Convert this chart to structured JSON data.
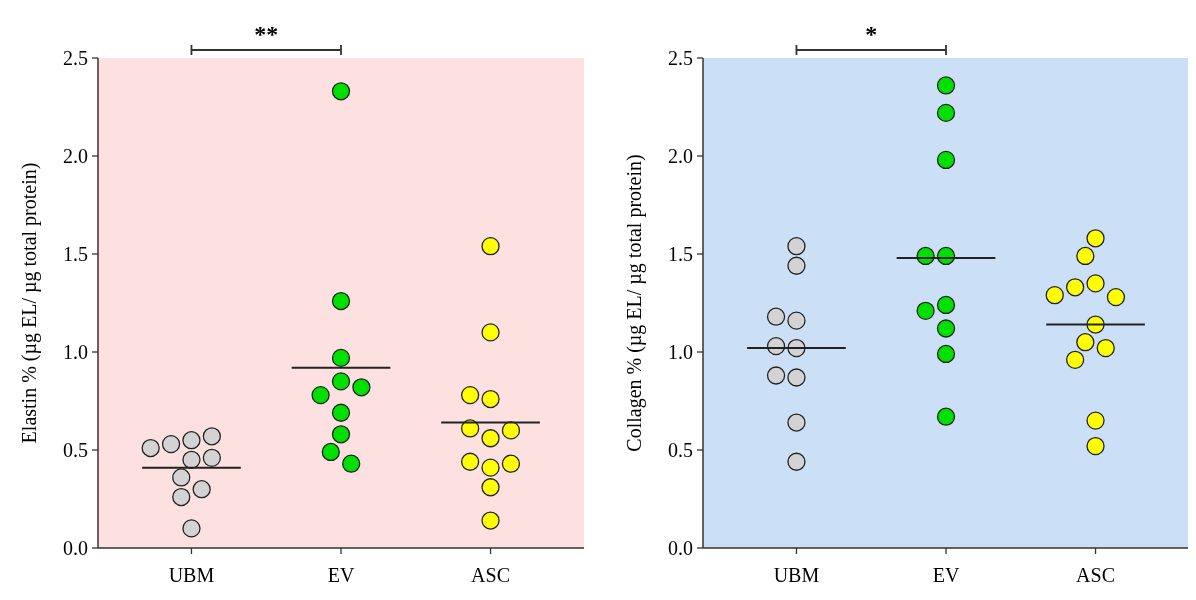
{
  "chart_data": [
    {
      "type": "scatter",
      "ylabel": "Elastin % (µg EL/ µg total protein)",
      "categories": [
        "UBM",
        "EV",
        "ASC"
      ],
      "ylim": [
        0,
        2.5
      ],
      "yticks": [
        {
          "value": 0,
          "label": "0.0"
        },
        0.5,
        {
          "value": 1,
          "label": "1.0"
        },
        1.5,
        {
          "value": 2,
          "label": "2.0"
        },
        2.5
      ],
      "grid": false,
      "marker": "circle",
      "annotations": [
        "**"
      ],
      "series": [
        {
          "type": "scatter",
          "color": "#d3d3d3",
          "x": [
            "UBM",
            "UBM",
            "UBM",
            "UBM",
            "UBM",
            "UBM",
            "UBM",
            "UBM",
            "UBM",
            "UBM"
          ],
          "values": [
            0.55,
            0.53,
            0.57,
            0.51,
            0.45,
            0.46,
            0.36,
            0.3,
            0.26,
            0.1
          ]
        },
        {
          "type": "scatter",
          "color": "#00e000",
          "x": [
            "EV",
            "EV",
            "EV",
            "EV",
            "EV",
            "EV",
            "EV",
            "EV",
            "EV",
            "EV"
          ],
          "values": [
            2.33,
            1.26,
            0.97,
            0.85,
            0.78,
            0.82,
            0.69,
            0.58,
            0.49,
            0.43
          ]
        },
        {
          "type": "scatter",
          "color": "#ffff00",
          "x": [
            "ASC",
            "ASC",
            "ASC",
            "ASC",
            "ASC",
            "ASC",
            "ASC",
            "ASC",
            "ASC",
            "ASC",
            "ASC",
            "ASC"
          ],
          "values": [
            1.54,
            1.1,
            0.76,
            0.78,
            0.56,
            0.61,
            0.6,
            0.41,
            0.44,
            0.43,
            0.31,
            0.14
          ]
        },
        {
          "type": "box",
          "color": "#222222",
          "boxes": [
            {
              "low": 0.41,
              "q1": 0.41,
              "median": 0.41,
              "q3": 0.41,
              "high": 0.41
            },
            {
              "low": 0.92,
              "q1": 0.92,
              "median": 0.92,
              "q3": 0.92,
              "high": 0.92
            },
            {
              "low": 0.64,
              "q1": 0.64,
              "median": 0.64,
              "q3": 0.64,
              "high": 0.64
            }
          ]
        }
      ]
    },
    {
      "type": "scatter",
      "ylabel": "Collagen % (µg EL/ µg total protein)",
      "categories": [
        "UBM",
        "EV",
        "ASC"
      ],
      "ylim": [
        0,
        2.5
      ],
      "yticks": [
        {
          "value": 0,
          "label": "0.0"
        },
        0.5,
        {
          "value": 1,
          "label": "1.0"
        },
        1.5,
        {
          "value": 2,
          "label": "2.0"
        },
        2.5
      ],
      "grid": false,
      "marker": "circle",
      "annotations": [
        "*"
      ],
      "series": [
        {
          "type": "scatter",
          "color": "#d3d3d3",
          "x": [
            "UBM",
            "UBM",
            "UBM",
            "UBM",
            "UBM",
            "UBM",
            "UBM",
            "UBM",
            "UBM",
            "UBM"
          ],
          "values": [
            1.54,
            1.44,
            1.16,
            1.18,
            1.02,
            1.03,
            0.87,
            0.88,
            0.64,
            0.44
          ]
        },
        {
          "type": "scatter",
          "color": "#00e000",
          "x": [
            "EV",
            "EV",
            "EV",
            "EV",
            "EV",
            "EV",
            "EV",
            "EV",
            "EV",
            "EV"
          ],
          "values": [
            2.36,
            2.22,
            1.98,
            1.49,
            1.49,
            1.24,
            1.21,
            1.12,
            0.99,
            0.67
          ]
        },
        {
          "type": "scatter",
          "color": "#ffff00",
          "x": [
            "ASC",
            "ASC",
            "ASC",
            "ASC",
            "ASC",
            "ASC",
            "ASC",
            "ASC",
            "ASC",
            "ASC",
            "ASC",
            "ASC"
          ],
          "values": [
            1.58,
            1.49,
            1.35,
            1.33,
            1.28,
            1.29,
            1.14,
            1.05,
            1.02,
            0.96,
            0.65,
            0.52
          ]
        },
        {
          "type": "box",
          "color": "#222222",
          "boxes": [
            {
              "low": 1.02,
              "q1": 1.02,
              "median": 1.02,
              "q3": 1.02,
              "high": 1.02
            },
            {
              "low": 1.48,
              "q1": 1.48,
              "median": 1.48,
              "q3": 1.48,
              "high": 1.48
            },
            {
              "low": 1.14,
              "q1": 1.14,
              "median": 1.14,
              "q3": 1.14,
              "high": 1.14
            }
          ]
        }
      ]
    }
  ]
}
